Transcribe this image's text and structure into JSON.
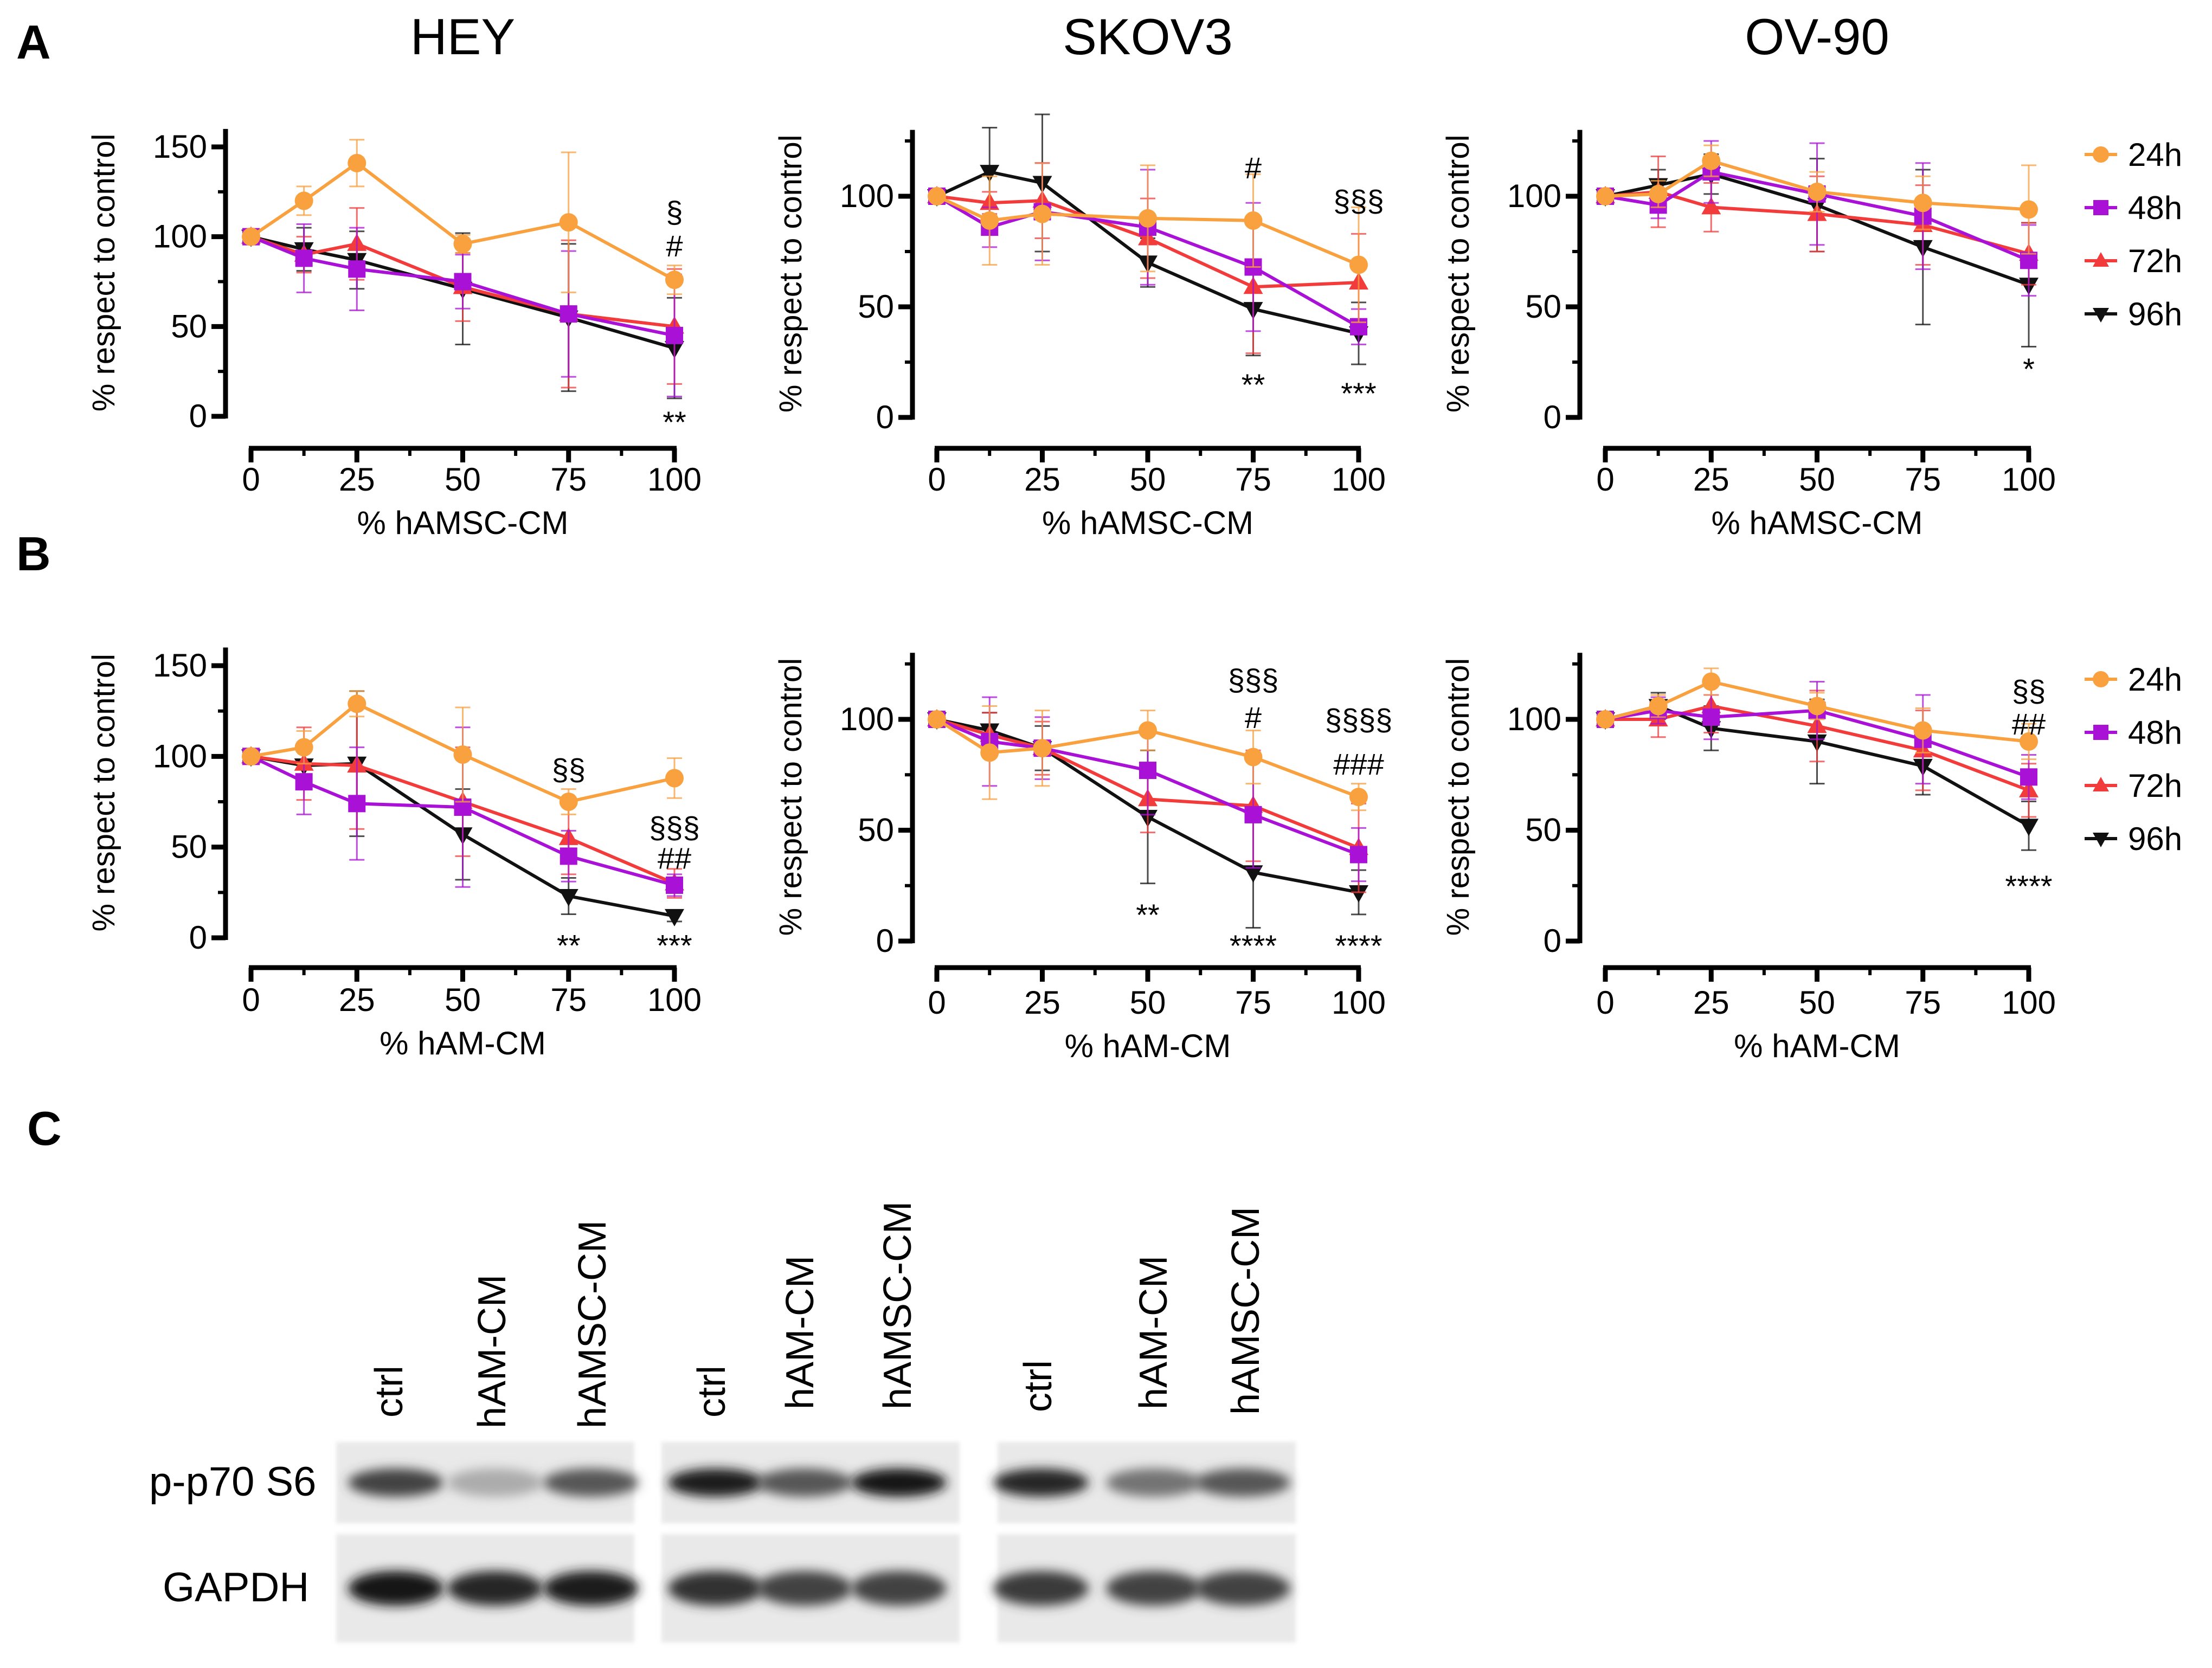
{
  "panel_letters": [
    "A",
    "B",
    "C"
  ],
  "colors": {
    "24h": "#f9a03f",
    "48h": "#a912d6",
    "72h": "#f23c3c",
    "96h": "#111111"
  },
  "legend": [
    "24h",
    "48h",
    "72h",
    "96h"
  ],
  "chart_data": [
    {
      "type": "line",
      "title": "HEY",
      "xlabel": "% hAMSC-CM",
      "ylabel": "% respect to control",
      "xlim": [
        0,
        100
      ],
      "ylim": [
        0,
        160
      ],
      "xticks": [
        0,
        25,
        50,
        75,
        100
      ],
      "yticks": [
        0,
        50,
        100,
        150
      ],
      "x": [
        0,
        12.5,
        25,
        50,
        75,
        100
      ],
      "series": [
        {
          "name": "24h",
          "values": [
            100,
            120,
            141,
            96,
            108,
            76
          ],
          "err": [
            0,
            8,
            13,
            5,
            39,
            8
          ]
        },
        {
          "name": "48h",
          "values": [
            100,
            88,
            82,
            75,
            57,
            45
          ],
          "err": [
            0,
            19,
            23,
            15,
            35,
            34
          ]
        },
        {
          "name": "72h",
          "values": [
            100,
            90,
            96,
            72,
            57,
            50
          ],
          "err": [
            0,
            10,
            20,
            19,
            41,
            32
          ]
        },
        {
          "name": "96h",
          "values": [
            100,
            93,
            87,
            71,
            55,
            38
          ],
          "err": [
            0,
            12,
            16,
            31,
            41,
            28
          ]
        }
      ],
      "annotations": [
        {
          "x": 100,
          "y": 114,
          "text": "§"
        },
        {
          "x": 100,
          "y": 95,
          "text": "#"
        },
        {
          "x": 100,
          "y": -3,
          "text": "**"
        }
      ]
    },
    {
      "type": "line",
      "title": "SKOV3",
      "xlabel": "% hAMSC-CM",
      "ylabel": "% respect to control",
      "xlim": [
        0,
        100
      ],
      "ylim": [
        0,
        130
      ],
      "xticks": [
        0,
        25,
        50,
        75,
        100
      ],
      "yticks": [
        0,
        50,
        100
      ],
      "x": [
        0,
        12.5,
        25,
        50,
        75,
        100
      ],
      "series": [
        {
          "name": "24h",
          "values": [
            100,
            89,
            92,
            90,
            89,
            69
          ],
          "err": [
            0,
            20,
            23,
            24,
            21,
            26
          ]
        },
        {
          "name": "48h",
          "values": [
            100,
            86,
            93,
            86,
            68,
            41
          ],
          "err": [
            0,
            9,
            22,
            26,
            29,
            8
          ]
        },
        {
          "name": "72h",
          "values": [
            100,
            97,
            98,
            81,
            59,
            61
          ],
          "err": [
            0,
            5,
            17,
            18,
            30,
            22
          ]
        },
        {
          "name": "96h",
          "values": [
            100,
            111,
            106,
            70,
            49,
            38
          ],
          "err": [
            0,
            20,
            31,
            11,
            21,
            14
          ]
        }
      ],
      "annotations": [
        {
          "x": 75,
          "y": 113,
          "text": "#"
        },
        {
          "x": 100,
          "y": 98,
          "text": "§§§"
        },
        {
          "x": 75,
          "y": 15,
          "text": "**"
        },
        {
          "x": 100,
          "y": 11,
          "text": "***"
        }
      ]
    },
    {
      "type": "line",
      "title": "OV-90",
      "xlabel": "% hAMSC-CM",
      "ylabel": "% respect to control",
      "xlim": [
        0,
        100
      ],
      "ylim": [
        0,
        130
      ],
      "xticks": [
        0,
        25,
        50,
        75,
        100
      ],
      "yticks": [
        0,
        50,
        100
      ],
      "x": [
        0,
        12.5,
        25,
        50,
        75,
        100
      ],
      "series": [
        {
          "name": "24h",
          "values": [
            100,
            101,
            116,
            102,
            97,
            94
          ],
          "err": [
            0,
            6,
            7,
            9,
            12,
            20
          ]
        },
        {
          "name": "48h",
          "values": [
            100,
            96,
            111,
            101,
            91,
            71
          ],
          "err": [
            0,
            6,
            14,
            23,
            24,
            16
          ]
        },
        {
          "name": "72h",
          "values": [
            100,
            102,
            95,
            92,
            87,
            74
          ],
          "err": [
            0,
            16,
            11,
            17,
            18,
            14
          ]
        },
        {
          "name": "96h",
          "values": [
            100,
            105,
            110,
            96,
            77,
            60
          ],
          "err": [
            0,
            7,
            9,
            21,
            35,
            28
          ]
        }
      ],
      "annotations": [
        {
          "x": 100,
          "y": 22,
          "text": "*"
        }
      ]
    },
    {
      "type": "line",
      "title": "",
      "xlabel": "% hAM-CM",
      "ylabel": "% respect to control",
      "xlim": [
        0,
        100
      ],
      "ylim": [
        0,
        160
      ],
      "xticks": [
        0,
        25,
        50,
        75,
        100
      ],
      "yticks": [
        0,
        50,
        100,
        150
      ],
      "x": [
        0,
        12.5,
        25,
        50,
        75,
        100
      ],
      "series": [
        {
          "name": "24h",
          "values": [
            100,
            105,
            129,
            101,
            75,
            88
          ],
          "err": [
            0,
            9,
            7,
            26,
            7,
            11
          ]
        },
        {
          "name": "48h",
          "values": [
            100,
            86,
            74,
            72,
            45,
            29
          ],
          "err": [
            0,
            18,
            31,
            44,
            14,
            6
          ]
        },
        {
          "name": "72h",
          "values": [
            100,
            96,
            95,
            75,
            55,
            30
          ],
          "err": [
            0,
            20,
            35,
            30,
            20,
            8
          ]
        },
        {
          "name": "96h",
          "values": [
            100,
            95,
            96,
            57,
            23,
            12
          ],
          "err": [
            0,
            10,
            40,
            25,
            10,
            3
          ]
        }
      ],
      "annotations": [
        {
          "x": 75,
          "y": 93,
          "text": "§§"
        },
        {
          "x": 100,
          "y": 61,
          "text": "§§§"
        },
        {
          "x": 100,
          "y": 44,
          "text": "##"
        },
        {
          "x": 75,
          "y": -4,
          "text": "**"
        },
        {
          "x": 100,
          "y": -4,
          "text": "***"
        }
      ]
    },
    {
      "type": "line",
      "title": "",
      "xlabel": "% hAM-CM",
      "ylabel": "% respect to control",
      "xlim": [
        0,
        100
      ],
      "ylim": [
        0,
        130
      ],
      "xticks": [
        0,
        25,
        50,
        75,
        100
      ],
      "yticks": [
        0,
        50,
        100
      ],
      "x": [
        0,
        12.5,
        25,
        50,
        75,
        100
      ],
      "series": [
        {
          "name": "24h",
          "values": [
            100,
            85,
            87,
            95,
            83,
            65
          ],
          "err": [
            0,
            21,
            17,
            9,
            12,
            6
          ]
        },
        {
          "name": "48h",
          "values": [
            100,
            90,
            87,
            77,
            57,
            39
          ],
          "err": [
            0,
            20,
            14,
            20,
            24,
            12
          ]
        },
        {
          "name": "72h",
          "values": [
            100,
            93,
            87,
            64,
            61,
            42
          ],
          "err": [
            0,
            10,
            12,
            15,
            25,
            20
          ]
        },
        {
          "name": "96h",
          "values": [
            100,
            95,
            87,
            56,
            31,
            22
          ],
          "err": [
            0,
            8,
            10,
            30,
            25,
            10
          ]
        }
      ],
      "annotations": [
        {
          "x": 75,
          "y": 118,
          "text": "§§§"
        },
        {
          "x": 75,
          "y": 101,
          "text": "#"
        },
        {
          "x": 100,
          "y": 100,
          "text": "§§§§"
        },
        {
          "x": 100,
          "y": 80,
          "text": "###"
        },
        {
          "x": 50,
          "y": 12,
          "text": "**"
        },
        {
          "x": 75,
          "y": -2,
          "text": "****"
        },
        {
          "x": 100,
          "y": -2,
          "text": "****"
        }
      ]
    },
    {
      "type": "line",
      "title": "",
      "xlabel": "% hAM-CM",
      "ylabel": "% respect to control",
      "xlim": [
        0,
        100
      ],
      "ylim": [
        0,
        130
      ],
      "xticks": [
        0,
        25,
        50,
        75,
        100
      ],
      "yticks": [
        0,
        50,
        100
      ],
      "x": [
        0,
        12.5,
        25,
        50,
        75,
        100
      ],
      "series": [
        {
          "name": "24h",
          "values": [
            100,
            106,
            117,
            106,
            95,
            90
          ],
          "err": [
            0,
            5,
            6,
            6,
            10,
            8
          ]
        },
        {
          "name": "48h",
          "values": [
            100,
            104,
            101,
            104,
            91,
            74
          ],
          "err": [
            0,
            6,
            10,
            13,
            20,
            10
          ]
        },
        {
          "name": "72h",
          "values": [
            100,
            100,
            106,
            97,
            86,
            68
          ],
          "err": [
            0,
            8,
            12,
            16,
            18,
            12
          ]
        },
        {
          "name": "96h",
          "values": [
            100,
            106,
            96,
            90,
            79,
            52
          ],
          "err": [
            0,
            6,
            10,
            19,
            13,
            11
          ]
        }
      ],
      "annotations": [
        {
          "x": 100,
          "y": 113,
          "text": "§§"
        },
        {
          "x": 100,
          "y": 98,
          "text": "##"
        },
        {
          "x": 100,
          "y": 25,
          "text": "****"
        }
      ]
    }
  ],
  "blot": {
    "lanes": [
      "ctrl",
      "hAM-CM",
      "hAMSC-CM",
      "ctrl",
      "hAM-CM",
      "hAMSC-CM",
      "ctrl",
      "hAM-CM",
      "hAMSC-CM"
    ],
    "rows": [
      {
        "label": "p-p70 S6",
        "intensity": [
          0.7,
          0.15,
          0.6,
          0.9,
          0.6,
          0.95,
          0.85,
          0.45,
          0.6
        ]
      },
      {
        "label": "GAPDH",
        "intensity": [
          0.95,
          0.85,
          0.9,
          0.8,
          0.7,
          0.7,
          0.75,
          0.7,
          0.7
        ]
      }
    ]
  }
}
